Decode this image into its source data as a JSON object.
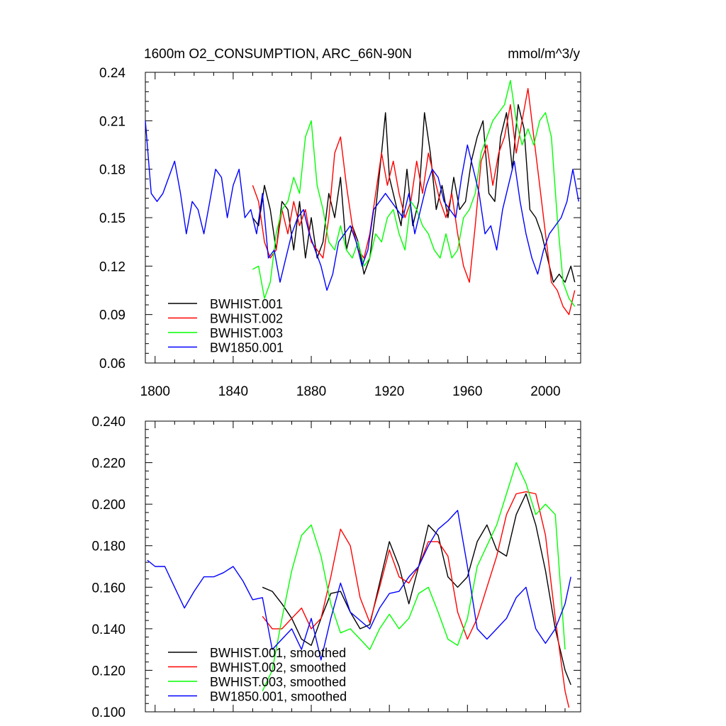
{
  "chart_data": [
    {
      "type": "line",
      "title_left": "1600m O2_CONSUMPTION, ARC_66N-90N",
      "title_right": "mmol/m^3/y",
      "xlabel": "",
      "ylabel": "",
      "xlim": [
        1795,
        2018
      ],
      "ylim": [
        0.06,
        0.24
      ],
      "x_ticks": [
        1800,
        1840,
        1880,
        1920,
        1960,
        2000
      ],
      "y_ticks": [
        0.06,
        0.09,
        0.12,
        0.15,
        0.18,
        0.21,
        0.24
      ],
      "y_tick_labels": [
        "0.06",
        "0.09",
        "0.12",
        "0.15",
        "0.18",
        "0.21",
        "0.24"
      ],
      "legend_position": "bottom-left",
      "series": [
        {
          "name": "BWHIST.001",
          "color": "#000000",
          "x": [
            1850,
            1853,
            1856,
            1859,
            1862,
            1865,
            1868,
            1871,
            1874,
            1877,
            1880,
            1883,
            1886,
            1889,
            1892,
            1895,
            1898,
            1901,
            1904,
            1907,
            1910,
            1913,
            1916,
            1918,
            1920,
            1923,
            1926,
            1929,
            1932,
            1935,
            1938,
            1941,
            1944,
            1947,
            1950,
            1953,
            1956,
            1959,
            1962,
            1965,
            1968,
            1971,
            1974,
            1977,
            1980,
            1983,
            1986,
            1989,
            1992,
            1995,
            1998,
            2001,
            2004,
            2007,
            2010,
            2013,
            2015
          ],
          "y": [
            0.15,
            0.145,
            0.17,
            0.155,
            0.13,
            0.16,
            0.155,
            0.13,
            0.16,
            0.125,
            0.15,
            0.125,
            0.135,
            0.165,
            0.15,
            0.175,
            0.13,
            0.145,
            0.135,
            0.115,
            0.125,
            0.155,
            0.19,
            0.215,
            0.175,
            0.16,
            0.145,
            0.18,
            0.145,
            0.16,
            0.215,
            0.19,
            0.155,
            0.17,
            0.15,
            0.175,
            0.155,
            0.16,
            0.185,
            0.2,
            0.21,
            0.165,
            0.16,
            0.2,
            0.215,
            0.18,
            0.22,
            0.205,
            0.155,
            0.15,
            0.14,
            0.125,
            0.11,
            0.115,
            0.11,
            0.12,
            0.11
          ]
        },
        {
          "name": "BWHIST.002",
          "color": "#ff0000",
          "x": [
            1850,
            1853,
            1856,
            1859,
            1862,
            1865,
            1868,
            1871,
            1874,
            1877,
            1880,
            1883,
            1886,
            1889,
            1892,
            1895,
            1898,
            1901,
            1904,
            1907,
            1910,
            1913,
            1916,
            1919,
            1922,
            1925,
            1928,
            1931,
            1934,
            1937,
            1940,
            1943,
            1946,
            1949,
            1952,
            1955,
            1958,
            1961,
            1964,
            1967,
            1970,
            1973,
            1976,
            1979,
            1982,
            1985,
            1988,
            1991,
            1994,
            1997,
            2000,
            2003,
            2006,
            2009,
            2012,
            2015
          ],
          "y": [
            0.17,
            0.16,
            0.135,
            0.125,
            0.13,
            0.155,
            0.14,
            0.16,
            0.145,
            0.155,
            0.135,
            0.13,
            0.125,
            0.15,
            0.19,
            0.2,
            0.17,
            0.145,
            0.13,
            0.125,
            0.14,
            0.165,
            0.19,
            0.17,
            0.185,
            0.165,
            0.15,
            0.16,
            0.185,
            0.165,
            0.19,
            0.175,
            0.16,
            0.15,
            0.165,
            0.14,
            0.12,
            0.11,
            0.145,
            0.185,
            0.195,
            0.17,
            0.19,
            0.2,
            0.22,
            0.19,
            0.21,
            0.23,
            0.2,
            0.17,
            0.14,
            0.11,
            0.105,
            0.095,
            0.09,
            0.105
          ]
        },
        {
          "name": "BWHIST.003",
          "color": "#00ff00",
          "x": [
            1850,
            1853,
            1856,
            1859,
            1862,
            1865,
            1868,
            1871,
            1874,
            1877,
            1880,
            1883,
            1886,
            1889,
            1892,
            1895,
            1898,
            1901,
            1904,
            1907,
            1910,
            1913,
            1916,
            1919,
            1922,
            1925,
            1928,
            1931,
            1934,
            1937,
            1940,
            1943,
            1946,
            1949,
            1952,
            1955,
            1958,
            1961,
            1964,
            1967,
            1970,
            1973,
            1976,
            1979,
            1982,
            1985,
            1988,
            1991,
            1994,
            1997,
            2000,
            2003,
            2006,
            2009,
            2012,
            2015
          ],
          "y": [
            0.118,
            0.12,
            0.1,
            0.11,
            0.14,
            0.155,
            0.16,
            0.175,
            0.165,
            0.2,
            0.21,
            0.17,
            0.155,
            0.135,
            0.13,
            0.145,
            0.13,
            0.125,
            0.135,
            0.12,
            0.125,
            0.14,
            0.135,
            0.15,
            0.155,
            0.14,
            0.13,
            0.16,
            0.155,
            0.145,
            0.14,
            0.13,
            0.125,
            0.14,
            0.125,
            0.13,
            0.15,
            0.155,
            0.165,
            0.19,
            0.2,
            0.21,
            0.215,
            0.22,
            0.235,
            0.21,
            0.195,
            0.205,
            0.195,
            0.21,
            0.215,
            0.2,
            0.15,
            0.11,
            0.1,
            0.095
          ]
        },
        {
          "name": "BW1850.001",
          "color": "#0000ff",
          "x": [
            1795,
            1798,
            1801,
            1804,
            1807,
            1810,
            1813,
            1816,
            1819,
            1822,
            1825,
            1828,
            1831,
            1834,
            1837,
            1840,
            1843,
            1846,
            1849,
            1852,
            1855,
            1858,
            1861,
            1864,
            1867,
            1870,
            1873,
            1876,
            1879,
            1882,
            1885,
            1888,
            1891,
            1894,
            1897,
            1900,
            1903,
            1906,
            1909,
            1912,
            1915,
            1918,
            1921,
            1924,
            1927,
            1930,
            1933,
            1936,
            1939,
            1942,
            1945,
            1948,
            1951,
            1954,
            1957,
            1960,
            1963,
            1966,
            1969,
            1972,
            1975,
            1978,
            1981,
            1984,
            1987,
            1990,
            1993,
            1996,
            1999,
            2002,
            2005,
            2008,
            2011,
            2014,
            2017
          ],
          "y": [
            0.21,
            0.165,
            0.16,
            0.165,
            0.175,
            0.185,
            0.165,
            0.14,
            0.16,
            0.155,
            0.14,
            0.16,
            0.18,
            0.175,
            0.15,
            0.17,
            0.18,
            0.15,
            0.155,
            0.14,
            0.165,
            0.125,
            0.13,
            0.11,
            0.125,
            0.14,
            0.15,
            0.155,
            0.14,
            0.13,
            0.12,
            0.105,
            0.115,
            0.135,
            0.14,
            0.145,
            0.135,
            0.12,
            0.13,
            0.155,
            0.16,
            0.165,
            0.16,
            0.155,
            0.15,
            0.165,
            0.14,
            0.155,
            0.17,
            0.18,
            0.175,
            0.16,
            0.155,
            0.15,
            0.175,
            0.195,
            0.18,
            0.165,
            0.14,
            0.145,
            0.13,
            0.155,
            0.17,
            0.185,
            0.16,
            0.14,
            0.125,
            0.115,
            0.13,
            0.14,
            0.145,
            0.15,
            0.16,
            0.18,
            0.16
          ]
        }
      ]
    },
    {
      "type": "line",
      "title": "",
      "xlabel": "",
      "ylabel": "",
      "xlim": [
        1795,
        2018
      ],
      "ylim": [
        0.1,
        0.24
      ],
      "x_ticks": [
        1800,
        1840,
        1880,
        1920,
        1960,
        2000
      ],
      "y_ticks": [
        0.1,
        0.12,
        0.14,
        0.16,
        0.18,
        0.2,
        0.22,
        0.24
      ],
      "y_tick_labels": [
        "0.100",
        "0.120",
        "0.140",
        "0.160",
        "0.180",
        "0.200",
        "0.220",
        "0.240"
      ],
      "legend_position": "bottom-left",
      "series": [
        {
          "name": "BWHIST.001, smoothed",
          "color": "#000000",
          "x": [
            1855,
            1860,
            1865,
            1870,
            1875,
            1880,
            1885,
            1890,
            1895,
            1900,
            1905,
            1910,
            1915,
            1920,
            1925,
            1930,
            1935,
            1940,
            1945,
            1950,
            1955,
            1960,
            1965,
            1970,
            1975,
            1980,
            1985,
            1990,
            1995,
            2000,
            2005,
            2010,
            2013
          ],
          "y": [
            0.16,
            0.158,
            0.152,
            0.145,
            0.135,
            0.132,
            0.145,
            0.157,
            0.158,
            0.148,
            0.14,
            0.142,
            0.162,
            0.182,
            0.17,
            0.152,
            0.17,
            0.19,
            0.185,
            0.165,
            0.16,
            0.165,
            0.182,
            0.19,
            0.178,
            0.175,
            0.195,
            0.205,
            0.19,
            0.168,
            0.14,
            0.12,
            0.113
          ]
        },
        {
          "name": "BWHIST.002, smoothed",
          "color": "#ff0000",
          "x": [
            1855,
            1860,
            1865,
            1870,
            1875,
            1880,
            1885,
            1890,
            1895,
            1900,
            1905,
            1910,
            1915,
            1920,
            1925,
            1930,
            1935,
            1940,
            1945,
            1950,
            1955,
            1960,
            1965,
            1970,
            1975,
            1980,
            1985,
            1990,
            1995,
            2000,
            2005,
            2010,
            2012
          ],
          "y": [
            0.146,
            0.14,
            0.14,
            0.145,
            0.15,
            0.14,
            0.145,
            0.165,
            0.188,
            0.18,
            0.155,
            0.143,
            0.16,
            0.178,
            0.165,
            0.162,
            0.17,
            0.182,
            0.182,
            0.175,
            0.148,
            0.135,
            0.145,
            0.16,
            0.175,
            0.195,
            0.205,
            0.206,
            0.205,
            0.185,
            0.145,
            0.11,
            0.102
          ]
        },
        {
          "name": "BWHIST.003, smoothed",
          "color": "#00ff00",
          "x": [
            1855,
            1860,
            1865,
            1870,
            1875,
            1880,
            1885,
            1890,
            1895,
            1900,
            1905,
            1910,
            1915,
            1920,
            1925,
            1930,
            1935,
            1940,
            1945,
            1950,
            1955,
            1960,
            1965,
            1970,
            1975,
            1980,
            1985,
            1990,
            1995,
            2000,
            2005,
            2010
          ],
          "y": [
            0.11,
            0.12,
            0.145,
            0.168,
            0.185,
            0.19,
            0.175,
            0.152,
            0.138,
            0.14,
            0.135,
            0.13,
            0.14,
            0.147,
            0.14,
            0.145,
            0.157,
            0.16,
            0.148,
            0.135,
            0.132,
            0.145,
            0.17,
            0.18,
            0.19,
            0.205,
            0.22,
            0.21,
            0.195,
            0.2,
            0.195,
            0.13
          ]
        },
        {
          "name": "BW1850.001, smoothed",
          "color": "#0000ff",
          "x": [
            1796,
            1800,
            1805,
            1810,
            1815,
            1820,
            1825,
            1830,
            1835,
            1840,
            1845,
            1850,
            1855,
            1860,
            1865,
            1870,
            1875,
            1880,
            1885,
            1890,
            1895,
            1900,
            1905,
            1910,
            1915,
            1920,
            1925,
            1930,
            1935,
            1940,
            1945,
            1950,
            1955,
            1960,
            1965,
            1970,
            1975,
            1980,
            1985,
            1990,
            1995,
            2000,
            2005,
            2010,
            2013
          ],
          "y": [
            0.173,
            0.17,
            0.17,
            0.16,
            0.15,
            0.158,
            0.165,
            0.165,
            0.167,
            0.17,
            0.163,
            0.154,
            0.155,
            0.13,
            0.135,
            0.14,
            0.13,
            0.145,
            0.125,
            0.145,
            0.162,
            0.148,
            0.144,
            0.14,
            0.15,
            0.157,
            0.158,
            0.165,
            0.17,
            0.18,
            0.188,
            0.192,
            0.197,
            0.17,
            0.14,
            0.135,
            0.14,
            0.145,
            0.155,
            0.16,
            0.14,
            0.133,
            0.14,
            0.152,
            0.165
          ]
        }
      ]
    }
  ]
}
